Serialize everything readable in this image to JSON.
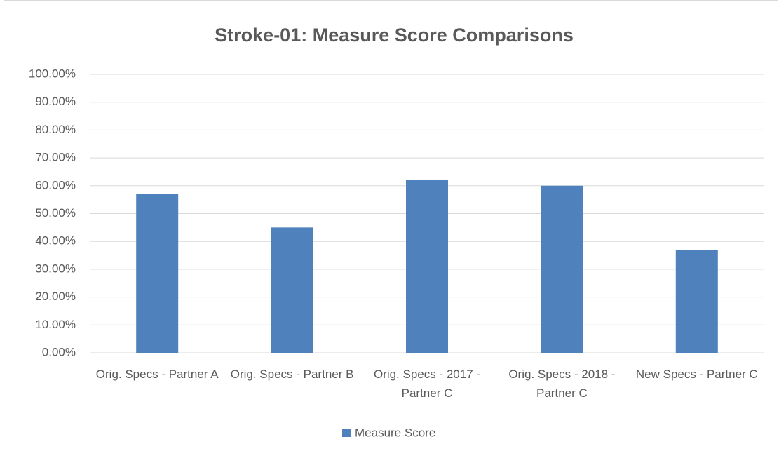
{
  "chart_data": {
    "type": "bar",
    "title": "Stroke-01: Measure Score Comparisons",
    "categories": [
      "Orig. Specs - Partner A",
      "Orig. Specs - Partner B",
      "Orig. Specs - 2017 - Partner C",
      "Orig. Specs - 2018 - Partner C",
      "New Specs - Partner C"
    ],
    "series": [
      {
        "name": "Measure Score",
        "color": "#4f81bd",
        "values": [
          57,
          45,
          62,
          60,
          37
        ]
      }
    ],
    "ylim": [
      0,
      100
    ],
    "yticks": [
      {
        "value": 0,
        "label": "0.00%"
      },
      {
        "value": 10,
        "label": "10.00%"
      },
      {
        "value": 20,
        "label": "20.00%"
      },
      {
        "value": 30,
        "label": "30.00%"
      },
      {
        "value": 40,
        "label": "40.00%"
      },
      {
        "value": 50,
        "label": "50.00%"
      },
      {
        "value": 60,
        "label": "60.00%"
      },
      {
        "value": 70,
        "label": "70.00%"
      },
      {
        "value": 80,
        "label": "80.00%"
      },
      {
        "value": 90,
        "label": "90.00%"
      },
      {
        "value": 100,
        "label": "100.00%"
      }
    ],
    "grid": true,
    "legend": "bottom"
  }
}
